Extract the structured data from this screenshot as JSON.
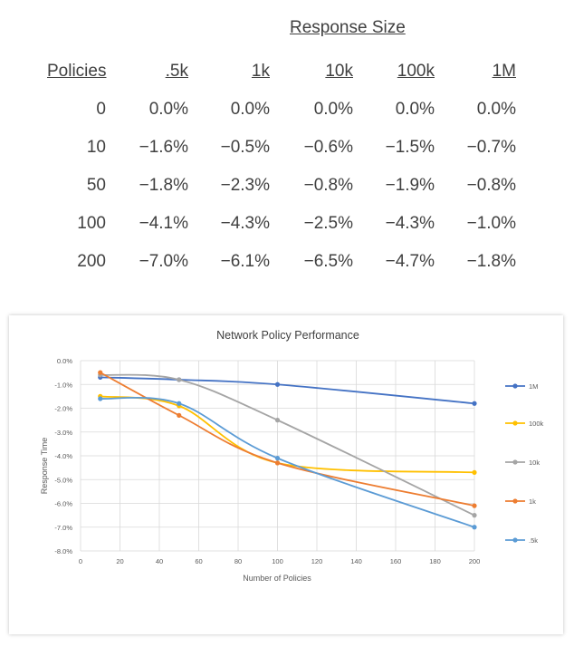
{
  "table": {
    "title": "Response Size",
    "headers": [
      "Policies",
      ".5k",
      "1k",
      "10k",
      "100k",
      "1M"
    ],
    "rows": [
      [
        "0",
        "0.0%",
        "0.0%",
        "0.0%",
        "0.0%",
        "0.0%"
      ],
      [
        "10",
        "−1.6%",
        "−0.5%",
        "−0.6%",
        "−1.5%",
        "−0.7%"
      ],
      [
        "50",
        "−1.8%",
        "−2.3%",
        "−0.8%",
        "−1.9%",
        "−0.8%"
      ],
      [
        "100",
        "−4.1%",
        "−4.3%",
        "−2.5%",
        "−4.3%",
        "−1.0%"
      ],
      [
        "200",
        "−7.0%",
        "−6.1%",
        "−6.5%",
        "−4.7%",
        "−1.8%"
      ]
    ]
  },
  "chart_data": {
    "type": "line",
    "title": "Network Policy Performance",
    "xlabel": "Number of Policies",
    "ylabel": "Response Time",
    "xlim": [
      0,
      200
    ],
    "ylim": [
      -8.0,
      0.0
    ],
    "x_ticks": [
      0,
      20,
      40,
      60,
      80,
      100,
      120,
      140,
      160,
      180,
      200
    ],
    "y_ticks": [
      0,
      -1,
      -2,
      -3,
      -4,
      -5,
      -6,
      -7,
      -8
    ],
    "y_tick_labels": [
      "0.0%",
      "-1.0%",
      "-2.0%",
      "-3.0%",
      "-4.0%",
      "-5.0%",
      "-6.0%",
      "-7.0%",
      "-8.0%"
    ],
    "grid": true,
    "legend_position": "right",
    "x": [
      10,
      50,
      100,
      200
    ],
    "series": [
      {
        "name": "1M",
        "color": "#4472c4",
        "values": [
          -0.7,
          -0.8,
          -1.0,
          -1.8
        ]
      },
      {
        "name": "100k",
        "color": "#ffc000",
        "values": [
          -1.5,
          -1.9,
          -4.3,
          -4.7
        ]
      },
      {
        "name": "10k",
        "color": "#a5a5a5",
        "values": [
          -0.6,
          -0.8,
          -2.5,
          -6.5
        ]
      },
      {
        "name": "1k",
        "color": "#ed7d31",
        "values": [
          -0.5,
          -2.3,
          -4.3,
          -6.1
        ]
      },
      {
        "name": ".5k",
        "color": "#5b9bd5",
        "values": [
          -1.6,
          -1.8,
          -4.1,
          -7.0
        ]
      }
    ]
  }
}
